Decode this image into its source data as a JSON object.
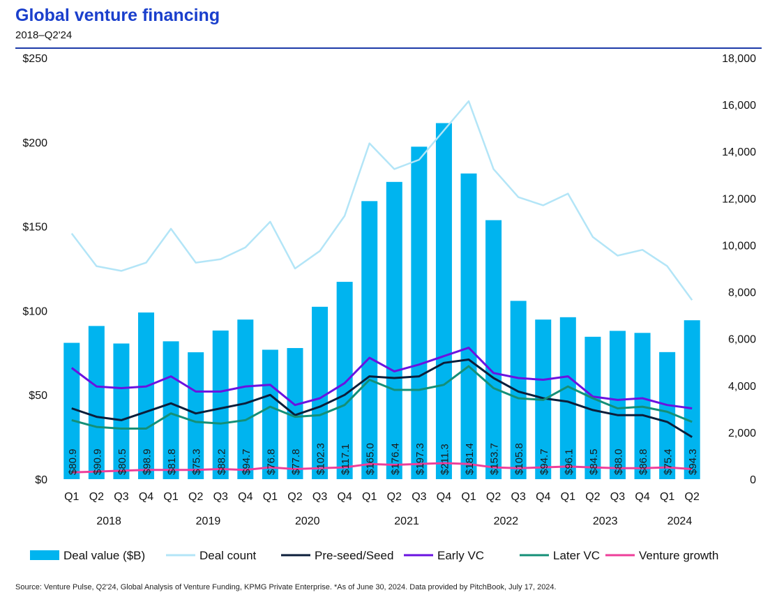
{
  "title": "Global venture financing",
  "subtitle": "2018–Q2'24",
  "source": "Source: Venture Pulse, Q2'24, Global Analysis of Venture Funding, KPMG Private Enterprise. *As of June 30, 2024. Data provided by PitchBook, July 17, 2024.",
  "colors": {
    "bar": "#00b4ef",
    "deal_count": "#b3e5f7",
    "pre_seed": "#0b1e3a",
    "early_vc": "#6a12e0",
    "later_vc": "#148f77",
    "venture_growth": "#ee3e9a",
    "title": "#1a3fcc"
  },
  "chart_data": {
    "type": "bar",
    "categories": [
      "Q1",
      "Q2",
      "Q3",
      "Q4",
      "Q1",
      "Q2",
      "Q3",
      "Q4",
      "Q1",
      "Q2",
      "Q3",
      "Q4",
      "Q1",
      "Q2",
      "Q3",
      "Q4",
      "Q1",
      "Q2",
      "Q3",
      "Q4",
      "Q1",
      "Q2",
      "Q3",
      "Q4",
      "Q1",
      "Q2"
    ],
    "years": [
      {
        "label": "2018",
        "start": 0,
        "end": 3
      },
      {
        "label": "2019",
        "start": 4,
        "end": 7
      },
      {
        "label": "2020",
        "start": 8,
        "end": 11
      },
      {
        "label": "2021",
        "start": 12,
        "end": 15
      },
      {
        "label": "2022",
        "start": 16,
        "end": 19
      },
      {
        "label": "2023",
        "start": 20,
        "end": 23
      },
      {
        "label": "2024",
        "start": 24,
        "end": 25
      }
    ],
    "y_left": {
      "min": 0,
      "max": 250,
      "ticks": [
        0,
        50,
        100,
        150,
        200,
        250
      ],
      "tick_labels": [
        "$0",
        "$50",
        "$100",
        "$150",
        "$200",
        "$250"
      ]
    },
    "y_right": {
      "min": 0,
      "max": 18000,
      "ticks": [
        0,
        2000,
        4000,
        6000,
        8000,
        10000,
        12000,
        14000,
        16000,
        18000
      ],
      "tick_labels": [
        "0",
        "2,000",
        "4,000",
        "6,000",
        "8,000",
        "10,000",
        "12,000",
        "14,000",
        "16,000",
        "18,000"
      ]
    },
    "bar_series": {
      "name": "Deal value ($B)",
      "axis": "left",
      "values": [
        80.9,
        90.9,
        80.5,
        98.9,
        81.8,
        75.3,
        88.2,
        94.7,
        76.8,
        77.8,
        102.3,
        117.1,
        165.0,
        176.4,
        197.3,
        211.3,
        181.4,
        153.7,
        105.8,
        94.7,
        96.1,
        84.5,
        88.0,
        86.8,
        75.4,
        94.3
      ],
      "labels": [
        "$80.9",
        "$90.9",
        "$80.5",
        "$98.9",
        "$81.8",
        "$75.3",
        "$88.2",
        "$94.7",
        "$76.8",
        "$77.8",
        "$102.3",
        "$117.1",
        "$165.0",
        "$176.4",
        "$197.3",
        "$211.3",
        "$181.4",
        "$153.7",
        "$105.8",
        "$94.7",
        "$96.1",
        "$84.5",
        "$88.0",
        "$86.8",
        "$75.4",
        "$94.3"
      ]
    },
    "count_series": {
      "name": "Deal count",
      "axis": "right",
      "values": [
        10500,
        9100,
        8900,
        9250,
        10700,
        9250,
        9400,
        9900,
        11000,
        9000,
        9750,
        11250,
        14350,
        13250,
        13650,
        14900,
        16150,
        13250,
        12050,
        11700,
        12200,
        10350,
        9550,
        9800,
        9100,
        7650
      ]
    },
    "line_series": [
      {
        "name": "Pre-seed/Seed",
        "axis": "left",
        "color_key": "pre_seed",
        "values": [
          42,
          37,
          35,
          40,
          45,
          39,
          42,
          45,
          50,
          38,
          43,
          50,
          61,
          60,
          61,
          69,
          71,
          60,
          52,
          48,
          46,
          41,
          38,
          38,
          34,
          25
        ]
      },
      {
        "name": "Early VC",
        "axis": "left",
        "color_key": "early_vc",
        "values": [
          66,
          55,
          54,
          55,
          61,
          52,
          52,
          55,
          56,
          44,
          48,
          57,
          72,
          64,
          68,
          73,
          78,
          63,
          60,
          59,
          61,
          49,
          47,
          48,
          44,
          42
        ]
      },
      {
        "name": "Later VC",
        "axis": "left",
        "color_key": "later_vc",
        "values": [
          35,
          31,
          30,
          30,
          39,
          34,
          33,
          35,
          43,
          37,
          38,
          44,
          59,
          53,
          53,
          56,
          67,
          54,
          48,
          47,
          55,
          48,
          42,
          43,
          40,
          34
        ]
      },
      {
        "name": "Venture growth",
        "axis": "left",
        "color_key": "venture_growth",
        "values": [
          4,
          4.5,
          5,
          5.5,
          5.5,
          5.5,
          6,
          5.5,
          7,
          6,
          6.5,
          7,
          9,
          8.5,
          9,
          9.5,
          9,
          7,
          6.5,
          7,
          7.5,
          7,
          6.5,
          6.5,
          7,
          6
        ]
      }
    ],
    "legend": {
      "position": "bottom",
      "items": [
        {
          "label": "Deal value ($B)",
          "kind": "bar",
          "color_key": "bar"
        },
        {
          "label": "Deal count",
          "kind": "line",
          "color_key": "deal_count"
        },
        {
          "label": "Pre-seed/Seed",
          "kind": "line",
          "color_key": "pre_seed"
        },
        {
          "label": "Early VC",
          "kind": "line",
          "color_key": "early_vc"
        },
        {
          "label": "Later VC",
          "kind": "line",
          "color_key": "later_vc"
        },
        {
          "label": "Venture growth",
          "kind": "line",
          "color_key": "venture_growth"
        }
      ]
    },
    "grid": false
  }
}
